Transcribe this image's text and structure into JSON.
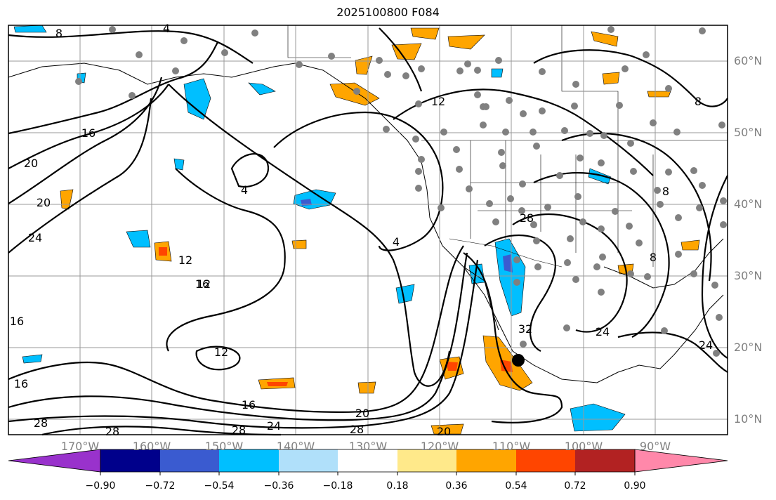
{
  "title": "2025100800 F084",
  "map": {
    "projection": "plate-carree",
    "lon_range": [
      -180,
      -80
    ],
    "lat_range": [
      8,
      65
    ],
    "grid": true,
    "lon_ticks": [
      "170°W",
      "160°W",
      "150°W",
      "140°W",
      "130°W",
      "120°W",
      "110°W",
      "100°W",
      "90°W"
    ],
    "lat_ticks": [
      "60°N",
      "50°N",
      "40°N",
      "30°N",
      "20°N",
      "10°N"
    ],
    "contour_labels": [
      "8",
      "4",
      "16",
      "20",
      "20",
      "24",
      "12",
      "16",
      "12",
      "16",
      "16",
      "12",
      "16",
      "28",
      "28",
      "28",
      "24",
      "20",
      "28",
      "20",
      "4",
      "4",
      "12",
      "8",
      "28",
      "32",
      "24",
      "24",
      "8",
      "8"
    ],
    "storm_marker": {
      "lon": -108.8,
      "lat": 18.2
    },
    "colors": {
      "contour": "#000000",
      "coast": "#000000",
      "grid": "#999999",
      "station": "#808080"
    }
  },
  "colorbar": {
    "labels": [
      "−0.90",
      "−0.72",
      "−0.54",
      "−0.36",
      "−0.18",
      "0.18",
      "0.36",
      "0.54",
      "0.72",
      "0.90"
    ],
    "colors": [
      "#9932cc",
      "#00008b",
      "#3a5bd0",
      "#00bfff",
      "#b0e0fa",
      "#ffffff",
      "#ffe98a",
      "#ffa500",
      "#ff4500",
      "#b22222",
      "#ff88aa"
    ]
  }
}
